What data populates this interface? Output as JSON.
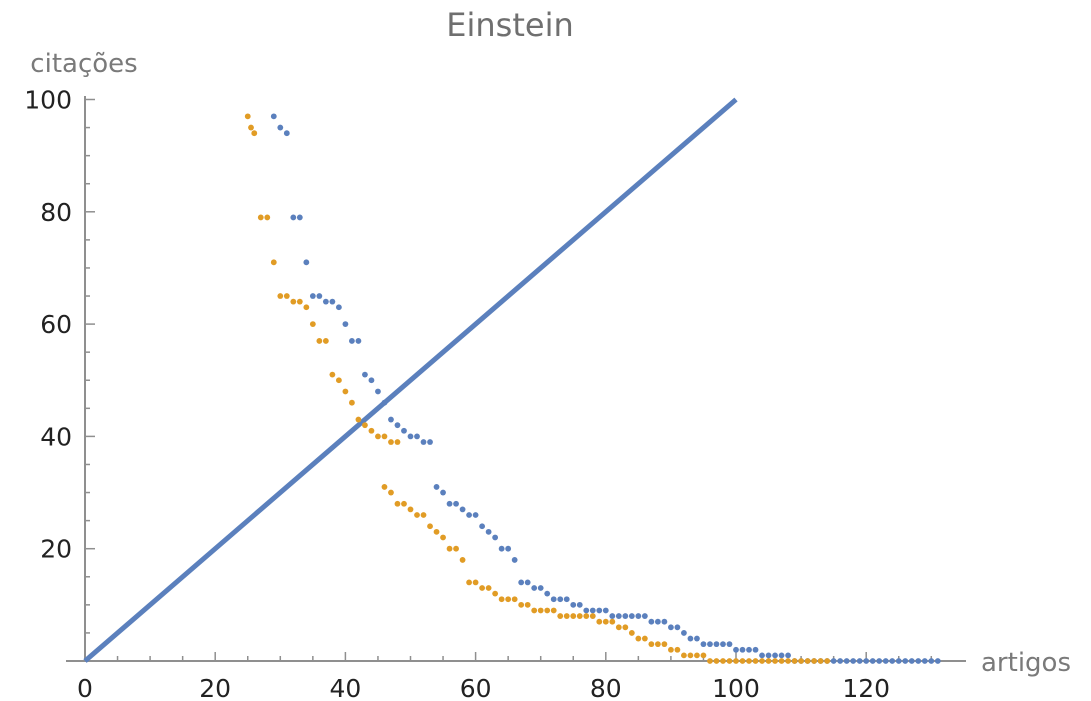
{
  "chart_data": {
    "type": "scatter",
    "title": "Einstein",
    "xlabel": "artigos",
    "ylabel": "citações",
    "xlim": [
      0,
      132
    ],
    "ylim": [
      0,
      100
    ],
    "xticks": [
      0,
      20,
      40,
      60,
      80,
      100,
      120
    ],
    "yticks": [
      20,
      40,
      60,
      80,
      100
    ],
    "grid": false,
    "colors": {
      "blue": "#5b80bd",
      "orange": "#e19c25",
      "axis": "#8f8f8f"
    },
    "series": [
      {
        "kind": "line",
        "color": "#5b80bd",
        "points": [
          [
            0,
            0
          ],
          [
            100,
            100
          ]
        ]
      },
      {
        "kind": "scatter",
        "color": "#5b80bd",
        "points": [
          [
            29,
            97
          ],
          [
            30,
            95
          ],
          [
            31,
            94
          ],
          [
            32,
            79
          ],
          [
            33,
            79
          ],
          [
            34,
            71
          ],
          [
            35,
            65
          ],
          [
            36,
            65
          ],
          [
            37,
            64
          ],
          [
            38,
            64
          ],
          [
            39,
            63
          ],
          [
            40,
            60
          ],
          [
            41,
            57
          ],
          [
            42,
            57
          ],
          [
            43,
            51
          ],
          [
            44,
            50
          ],
          [
            45,
            48
          ],
          [
            46,
            46
          ],
          [
            47,
            43
          ],
          [
            48,
            42
          ],
          [
            49,
            41
          ],
          [
            50,
            40
          ],
          [
            51,
            40
          ],
          [
            52,
            39
          ],
          [
            53,
            39
          ],
          [
            54,
            31
          ],
          [
            55,
            30
          ],
          [
            56,
            28
          ],
          [
            57,
            28
          ],
          [
            58,
            27
          ],
          [
            59,
            26
          ],
          [
            60,
            26
          ],
          [
            61,
            24
          ],
          [
            62,
            23
          ],
          [
            63,
            22
          ],
          [
            64,
            20
          ],
          [
            65,
            20
          ],
          [
            66,
            18
          ],
          [
            67,
            14
          ],
          [
            68,
            14
          ],
          [
            69,
            13
          ],
          [
            70,
            13
          ],
          [
            71,
            12
          ],
          [
            72,
            11
          ],
          [
            73,
            11
          ],
          [
            74,
            11
          ],
          [
            75,
            10
          ],
          [
            76,
            10
          ],
          [
            77,
            9
          ],
          [
            78,
            9
          ],
          [
            79,
            9
          ],
          [
            80,
            9
          ],
          [
            81,
            8
          ],
          [
            82,
            8
          ],
          [
            83,
            8
          ],
          [
            84,
            8
          ],
          [
            85,
            8
          ],
          [
            86,
            8
          ],
          [
            87,
            7
          ],
          [
            88,
            7
          ],
          [
            89,
            7
          ],
          [
            90,
            6
          ],
          [
            91,
            6
          ],
          [
            92,
            5
          ],
          [
            93,
            4
          ],
          [
            94,
            4
          ],
          [
            95,
            3
          ],
          [
            96,
            3
          ],
          [
            97,
            3
          ],
          [
            98,
            3
          ],
          [
            99,
            3
          ],
          [
            100,
            2
          ],
          [
            101,
            2
          ],
          [
            102,
            2
          ],
          [
            103,
            2
          ],
          [
            104,
            1
          ],
          [
            105,
            1
          ],
          [
            106,
            1
          ],
          [
            107,
            1
          ],
          [
            108,
            1
          ],
          [
            109,
            0
          ],
          [
            110,
            0
          ],
          [
            111,
            0
          ],
          [
            112,
            0
          ],
          [
            113,
            0
          ],
          [
            114,
            0
          ],
          [
            115,
            0
          ],
          [
            116,
            0
          ],
          [
            117,
            0
          ],
          [
            118,
            0
          ],
          [
            119,
            0
          ],
          [
            120,
            0
          ],
          [
            121,
            0
          ],
          [
            122,
            0
          ],
          [
            123,
            0
          ],
          [
            124,
            0
          ],
          [
            125,
            0
          ],
          [
            126,
            0
          ],
          [
            127,
            0
          ],
          [
            128,
            0
          ],
          [
            129,
            0
          ],
          [
            130,
            0
          ],
          [
            131,
            0
          ]
        ]
      },
      {
        "kind": "scatter",
        "color": "#e19c25",
        "points": [
          [
            25,
            97
          ],
          [
            25.5,
            95
          ],
          [
            26,
            94
          ],
          [
            27,
            79
          ],
          [
            28,
            79
          ],
          [
            29,
            71
          ],
          [
            30,
            65
          ],
          [
            31,
            65
          ],
          [
            32,
            64
          ],
          [
            33,
            64
          ],
          [
            34,
            63
          ],
          [
            35,
            60
          ],
          [
            36,
            57
          ],
          [
            37,
            57
          ],
          [
            38,
            51
          ],
          [
            39,
            50
          ],
          [
            40,
            48
          ],
          [
            41,
            46
          ],
          [
            42,
            43
          ],
          [
            43,
            42
          ],
          [
            44,
            41
          ],
          [
            45,
            40
          ],
          [
            46,
            40
          ],
          [
            47,
            39
          ],
          [
            48,
            39
          ],
          [
            46,
            31
          ],
          [
            47,
            30
          ],
          [
            48,
            28
          ],
          [
            49,
            28
          ],
          [
            50,
            27
          ],
          [
            51,
            26
          ],
          [
            52,
            26
          ],
          [
            53,
            24
          ],
          [
            54,
            23
          ],
          [
            55,
            22
          ],
          [
            56,
            20
          ],
          [
            57,
            20
          ],
          [
            58,
            18
          ],
          [
            59,
            14
          ],
          [
            60,
            14
          ],
          [
            61,
            13
          ],
          [
            62,
            13
          ],
          [
            63,
            12
          ],
          [
            64,
            11
          ],
          [
            65,
            11
          ],
          [
            66,
            11
          ],
          [
            67,
            10
          ],
          [
            68,
            10
          ],
          [
            69,
            9
          ],
          [
            70,
            9
          ],
          [
            71,
            9
          ],
          [
            72,
            9
          ],
          [
            73,
            8
          ],
          [
            74,
            8
          ],
          [
            75,
            8
          ],
          [
            76,
            8
          ],
          [
            77,
            8
          ],
          [
            78,
            8
          ],
          [
            79,
            7
          ],
          [
            80,
            7
          ],
          [
            81,
            7
          ],
          [
            82,
            6
          ],
          [
            83,
            6
          ],
          [
            84,
            5
          ],
          [
            85,
            4
          ],
          [
            86,
            4
          ],
          [
            87,
            3
          ],
          [
            88,
            3
          ],
          [
            89,
            3
          ],
          [
            90,
            2
          ],
          [
            91,
            2
          ],
          [
            92,
            1
          ],
          [
            93,
            1
          ],
          [
            94,
            1
          ],
          [
            95,
            1
          ],
          [
            96,
            0
          ],
          [
            97,
            0
          ],
          [
            98,
            0
          ],
          [
            99,
            0
          ],
          [
            100,
            0
          ],
          [
            101,
            0
          ],
          [
            102,
            0
          ],
          [
            103,
            0
          ],
          [
            104,
            0
          ],
          [
            105,
            0
          ],
          [
            106,
            0
          ],
          [
            107,
            0
          ],
          [
            108,
            0
          ],
          [
            109,
            0
          ],
          [
            110,
            0
          ],
          [
            111,
            0
          ],
          [
            112,
            0
          ],
          [
            113,
            0
          ],
          [
            114,
            0
          ]
        ]
      }
    ]
  }
}
